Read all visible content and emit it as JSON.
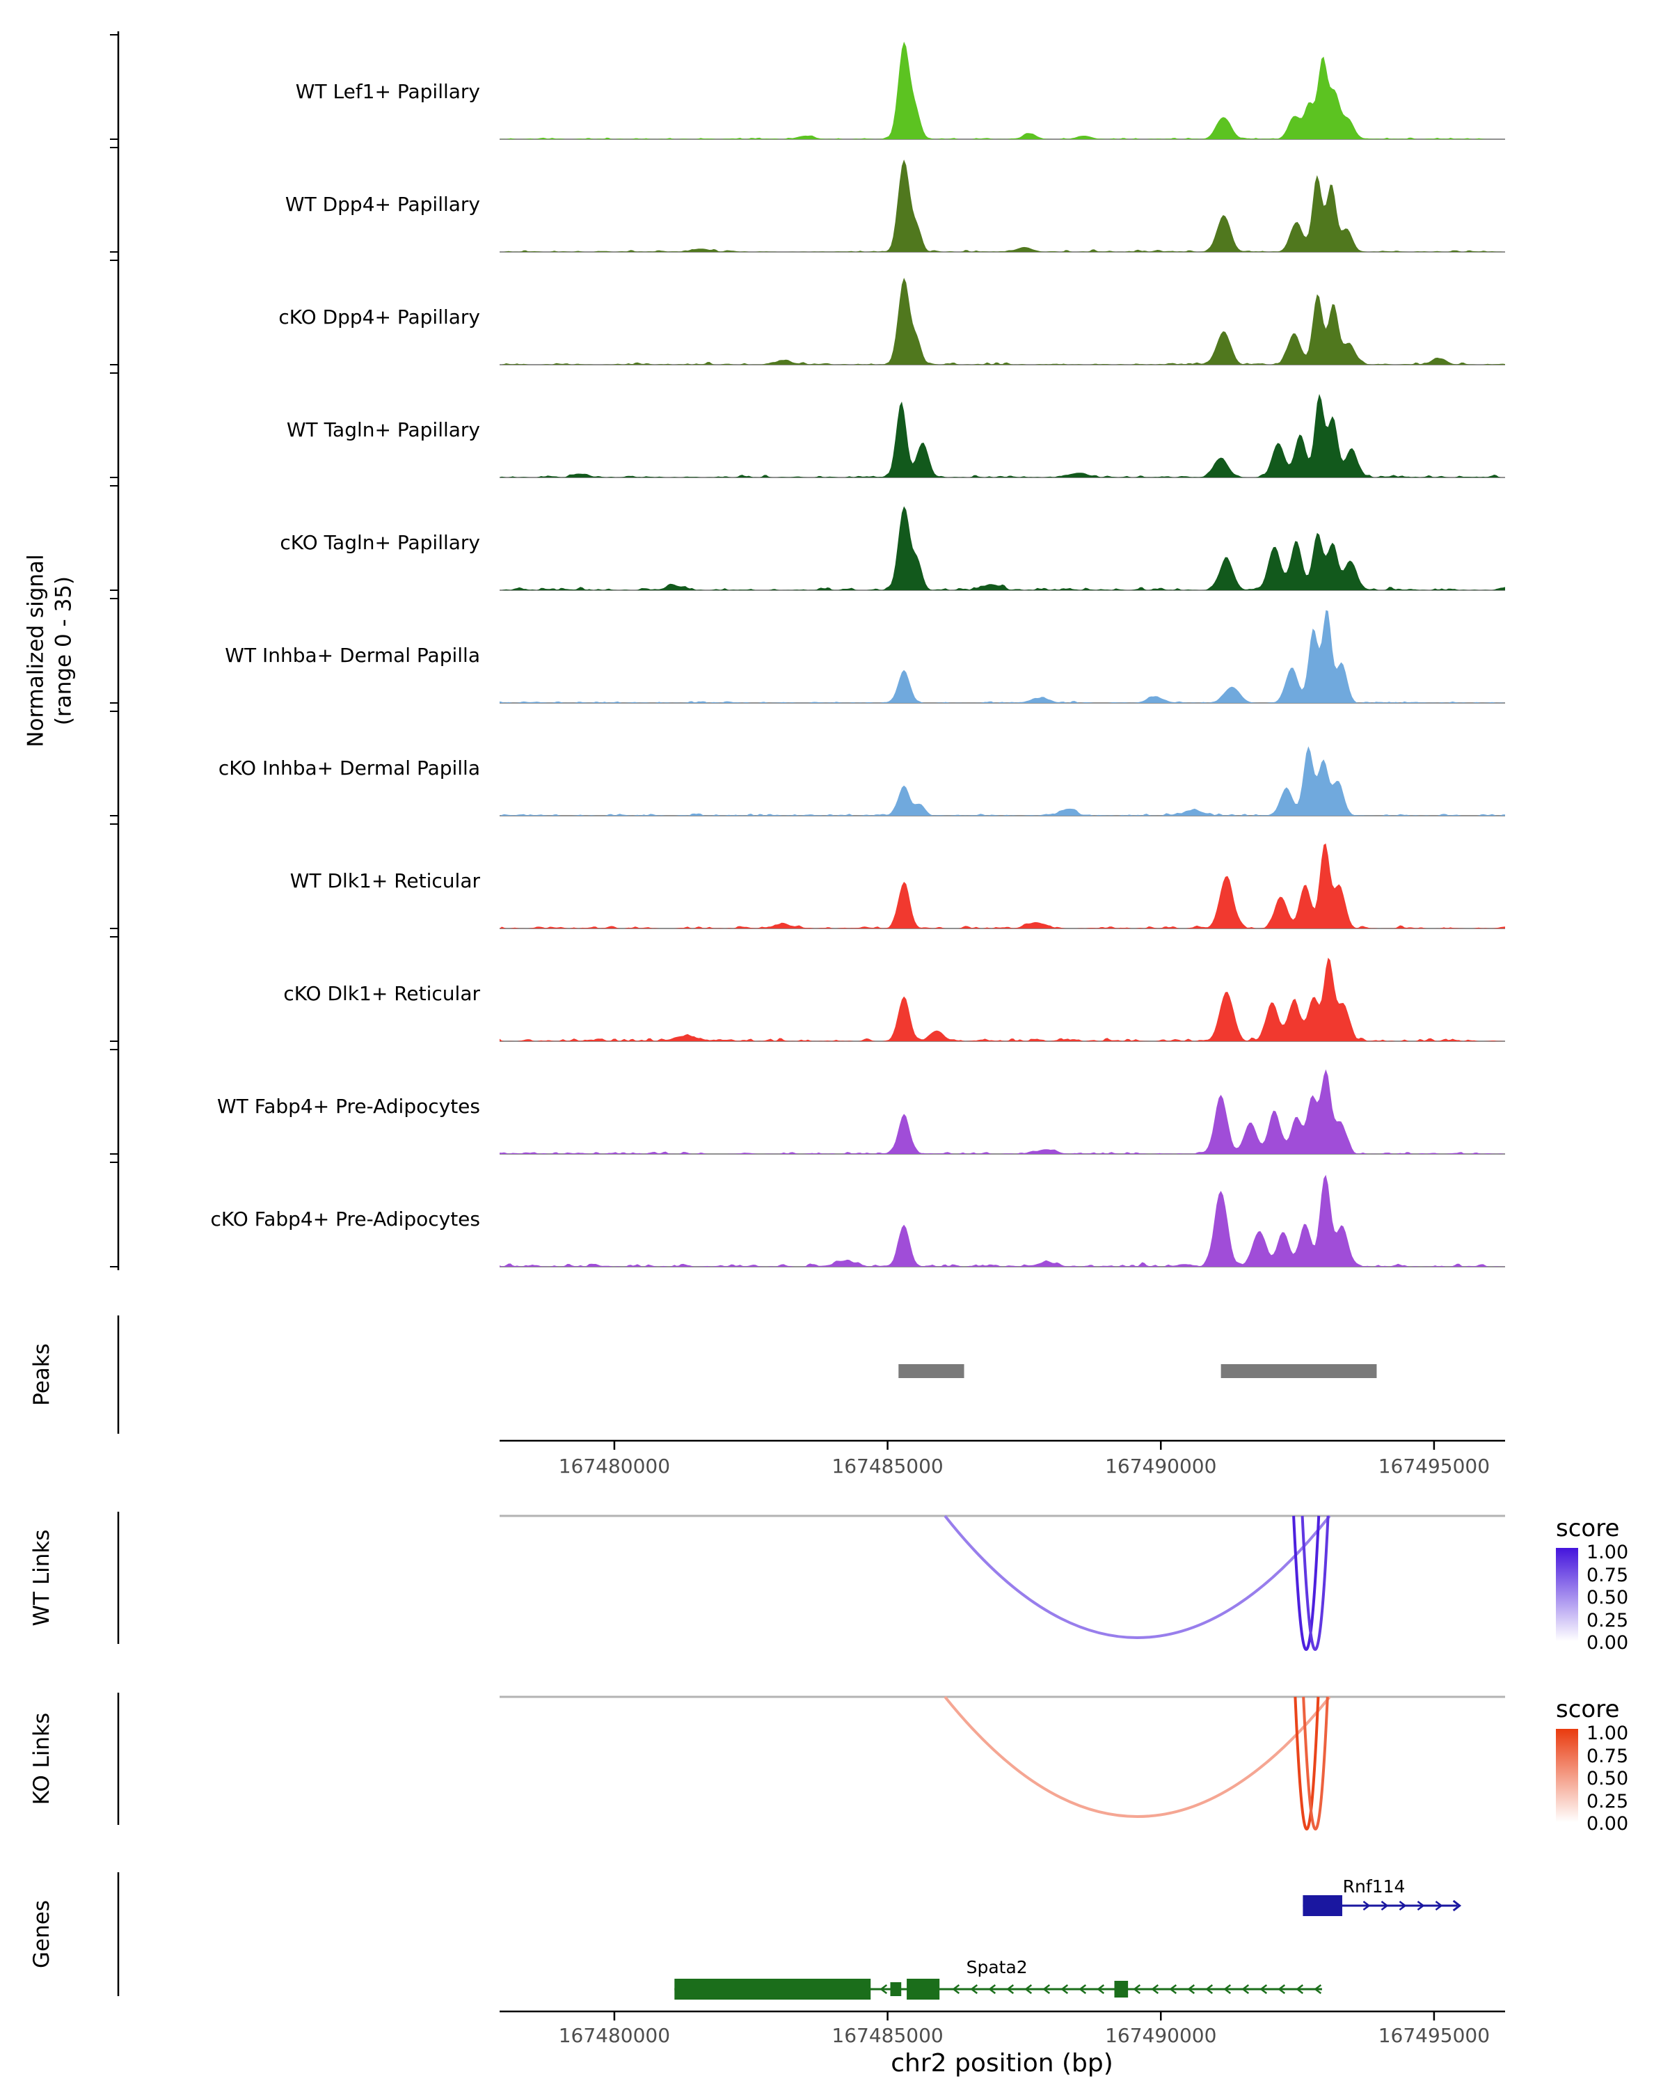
{
  "chart_data": {
    "type": "area",
    "figure_kind": "genome-browser-coverage-tracks",
    "region": {
      "chrom": "chr2",
      "start": 167477900,
      "end": 167496300
    },
    "xlabel": "chr2 position (bp)",
    "signal_axis": {
      "label_line1": "Normalized signal",
      "label_line2": "(range 0 - 35)",
      "ymin": 0,
      "ymax": 35
    },
    "xticks": [
      {
        "pos": 167480000,
        "label": "167480000"
      },
      {
        "pos": 167485000,
        "label": "167485000"
      },
      {
        "pos": 167490000,
        "label": "167490000"
      },
      {
        "pos": 167495000,
        "label": "167495000"
      }
    ],
    "tracks": [
      {
        "label": "WT Lef1+ Papillary",
        "color": "#5CC321",
        "noise": 1.0,
        "peaks": [
          [
            167485300,
            100,
            33.5
          ],
          [
            167485520,
            80,
            9
          ],
          [
            167483500,
            150,
            1.2
          ],
          [
            167487600,
            120,
            1.8
          ],
          [
            167488600,
            130,
            1.2
          ],
          [
            167491150,
            130,
            7.5
          ],
          [
            167492450,
            110,
            8
          ],
          [
            167492720,
            80,
            12
          ],
          [
            167492960,
            80,
            28
          ],
          [
            167493180,
            90,
            16
          ],
          [
            167493430,
            100,
            7
          ]
        ]
      },
      {
        "label": "WT Dpp4+ Papillary",
        "color": "#50781E",
        "noise": 1.2,
        "peaks": [
          [
            167485300,
            100,
            32
          ],
          [
            167485540,
            80,
            8
          ],
          [
            167491150,
            120,
            12.5
          ],
          [
            167492480,
            110,
            10
          ],
          [
            167492860,
            80,
            27
          ],
          [
            167493120,
            80,
            24
          ],
          [
            167493400,
            100,
            8
          ],
          [
            167487500,
            140,
            1.6
          ],
          [
            167481600,
            150,
            1.0
          ]
        ]
      },
      {
        "label": "cKO Dpp4+ Papillary",
        "color": "#50781E",
        "noise": 1.4,
        "peaks": [
          [
            167485300,
            100,
            30
          ],
          [
            167485540,
            80,
            8
          ],
          [
            167491150,
            120,
            11.5
          ],
          [
            167492440,
            110,
            11
          ],
          [
            167492870,
            85,
            25
          ],
          [
            167493160,
            85,
            21
          ],
          [
            167493450,
            110,
            7
          ],
          [
            167495100,
            120,
            2.2
          ],
          [
            167483100,
            160,
            1.2
          ]
        ]
      },
      {
        "label": "WT Tagln+ Papillary",
        "color": "#12591C",
        "noise": 1.5,
        "peaks": [
          [
            167485250,
            90,
            26
          ],
          [
            167485640,
            100,
            12
          ],
          [
            167491100,
            130,
            6.5
          ],
          [
            167492150,
            110,
            12
          ],
          [
            167492550,
            95,
            15
          ],
          [
            167492900,
            80,
            29
          ],
          [
            167493150,
            85,
            21
          ],
          [
            167493490,
            100,
            10
          ],
          [
            167488500,
            160,
            1.6
          ],
          [
            167479400,
            130,
            1.2
          ]
        ]
      },
      {
        "label": "cKO Tagln+ Papillary",
        "color": "#12591C",
        "noise": 1.7,
        "peaks": [
          [
            167485300,
            100,
            29
          ],
          [
            167485550,
            80,
            10
          ],
          [
            167491200,
            120,
            11
          ],
          [
            167492080,
            110,
            15
          ],
          [
            167492480,
            100,
            17
          ],
          [
            167492870,
            85,
            20
          ],
          [
            167493140,
            90,
            16
          ],
          [
            167493470,
            110,
            10
          ],
          [
            167486900,
            160,
            2.0
          ],
          [
            167481100,
            160,
            1.5
          ]
        ]
      },
      {
        "label": "WT Inhba+ Dermal Papilla",
        "color": "#70A9DD",
        "noise": 1.1,
        "peaks": [
          [
            167485300,
            100,
            11.5
          ],
          [
            167491300,
            140,
            5.5
          ],
          [
            167492400,
            110,
            12
          ],
          [
            167492790,
            80,
            26
          ],
          [
            167493040,
            78,
            33
          ],
          [
            167493310,
            90,
            14
          ],
          [
            167487800,
            160,
            1.6
          ],
          [
            167489900,
            150,
            2.0
          ]
        ]
      },
      {
        "label": "cKO Inhba+ Dermal Papilla",
        "color": "#70A9DD",
        "noise": 1.4,
        "peaks": [
          [
            167485300,
            100,
            10.5
          ],
          [
            167485600,
            80,
            4
          ],
          [
            167492300,
            110,
            9.5
          ],
          [
            167492700,
            85,
            24
          ],
          [
            167492970,
            85,
            19
          ],
          [
            167493240,
            100,
            12
          ],
          [
            167488300,
            130,
            2.4
          ],
          [
            167490600,
            160,
            2.0
          ]
        ]
      },
      {
        "label": "WT Dlk1+ Reticular",
        "color": "#F1392F",
        "noise": 1.5,
        "peaks": [
          [
            167485300,
            100,
            16
          ],
          [
            167491200,
            120,
            18
          ],
          [
            167492200,
            110,
            11
          ],
          [
            167492640,
            95,
            15
          ],
          [
            167493000,
            85,
            30
          ],
          [
            167493270,
            95,
            15
          ],
          [
            167487700,
            160,
            2.0
          ],
          [
            167483100,
            200,
            1.2
          ]
        ]
      },
      {
        "label": "cKO Dlk1+ Reticular",
        "color": "#F1392F",
        "noise": 1.9,
        "peaks": [
          [
            167485300,
            100,
            15.5
          ],
          [
            167491200,
            120,
            17
          ],
          [
            167492040,
            110,
            13
          ],
          [
            167492440,
            105,
            14
          ],
          [
            167492790,
            90,
            15
          ],
          [
            167493070,
            85,
            29
          ],
          [
            167493340,
            105,
            13
          ],
          [
            167485900,
            130,
            3.2
          ],
          [
            167481300,
            200,
            1.8
          ]
        ]
      },
      {
        "label": "WT Fabp4+ Pre-Adipocytes",
        "color": "#A04DD8",
        "noise": 1.5,
        "peaks": [
          [
            167485300,
            100,
            13.5
          ],
          [
            167491100,
            110,
            20
          ],
          [
            167491640,
            110,
            11
          ],
          [
            167492080,
            105,
            15
          ],
          [
            167492480,
            95,
            13
          ],
          [
            167492770,
            85,
            20
          ],
          [
            167493020,
            85,
            29
          ],
          [
            167493290,
            100,
            11
          ],
          [
            167487900,
            160,
            1.6
          ]
        ]
      },
      {
        "label": "cKO Fabp4+ Pre-Adipocytes",
        "color": "#A04DD8",
        "noise": 1.9,
        "peaks": [
          [
            167485300,
            100,
            14.5
          ],
          [
            167491100,
            115,
            26
          ],
          [
            167491800,
            120,
            12
          ],
          [
            167492240,
            105,
            12
          ],
          [
            167492640,
            95,
            15
          ],
          [
            167493010,
            90,
            32
          ],
          [
            167493320,
            105,
            14
          ],
          [
            167484200,
            160,
            2.0
          ],
          [
            167487900,
            150,
            1.6
          ]
        ]
      }
    ],
    "peaks": {
      "section_label": "Peaks",
      "color": "#7a7a7a",
      "intervals": [
        [
          167485200,
          167486400
        ],
        [
          167491100,
          167493950
        ]
      ]
    },
    "links": [
      {
        "section_label": "WT Links",
        "legend_title": "score",
        "legend_levels": [
          "1.00",
          "0.75",
          "0.50",
          "0.25",
          "0.00"
        ],
        "high_color": "#4414DC",
        "arcs": [
          {
            "from": 167486050,
            "to": 167493090,
            "score": 0.55,
            "depth": 175
          },
          {
            "from": 167492430,
            "to": 167492890,
            "score": 0.95,
            "depth": 192
          },
          {
            "from": 167492590,
            "to": 167493060,
            "score": 0.85,
            "depth": 192
          }
        ]
      },
      {
        "section_label": "KO Links",
        "legend_title": "score",
        "legend_levels": [
          "1.00",
          "0.75",
          "0.50",
          "0.25",
          "0.00"
        ],
        "high_color": "#E93A0E",
        "arcs": [
          {
            "from": 167486050,
            "to": 167493090,
            "score": 0.45,
            "depth": 172
          },
          {
            "from": 167492460,
            "to": 167492880,
            "score": 0.95,
            "depth": 190
          },
          {
            "from": 167492610,
            "to": 167493050,
            "score": 0.8,
            "depth": 190
          }
        ]
      }
    ],
    "genes_section": {
      "section_label": "Genes",
      "genes": [
        {
          "name": "Rnf114",
          "color": "#1A17A0",
          "strand": "+",
          "start": 167492600,
          "end": 167495430,
          "label_anchor": 167493900,
          "exons": [
            [
              167492600,
              167493320,
              "large"
            ]
          ]
        },
        {
          "name": "Spata2",
          "color": "#1B6E1B",
          "strand": "-",
          "start": 167481100,
          "end": 167492950,
          "label_anchor": 167487000,
          "exons": [
            [
              167481100,
              167484690,
              "large"
            ],
            [
              167485050,
              167485250,
              "small"
            ],
            [
              167485350,
              167485950,
              "large"
            ],
            [
              167489150,
              167489400,
              "medium"
            ]
          ]
        }
      ]
    }
  }
}
